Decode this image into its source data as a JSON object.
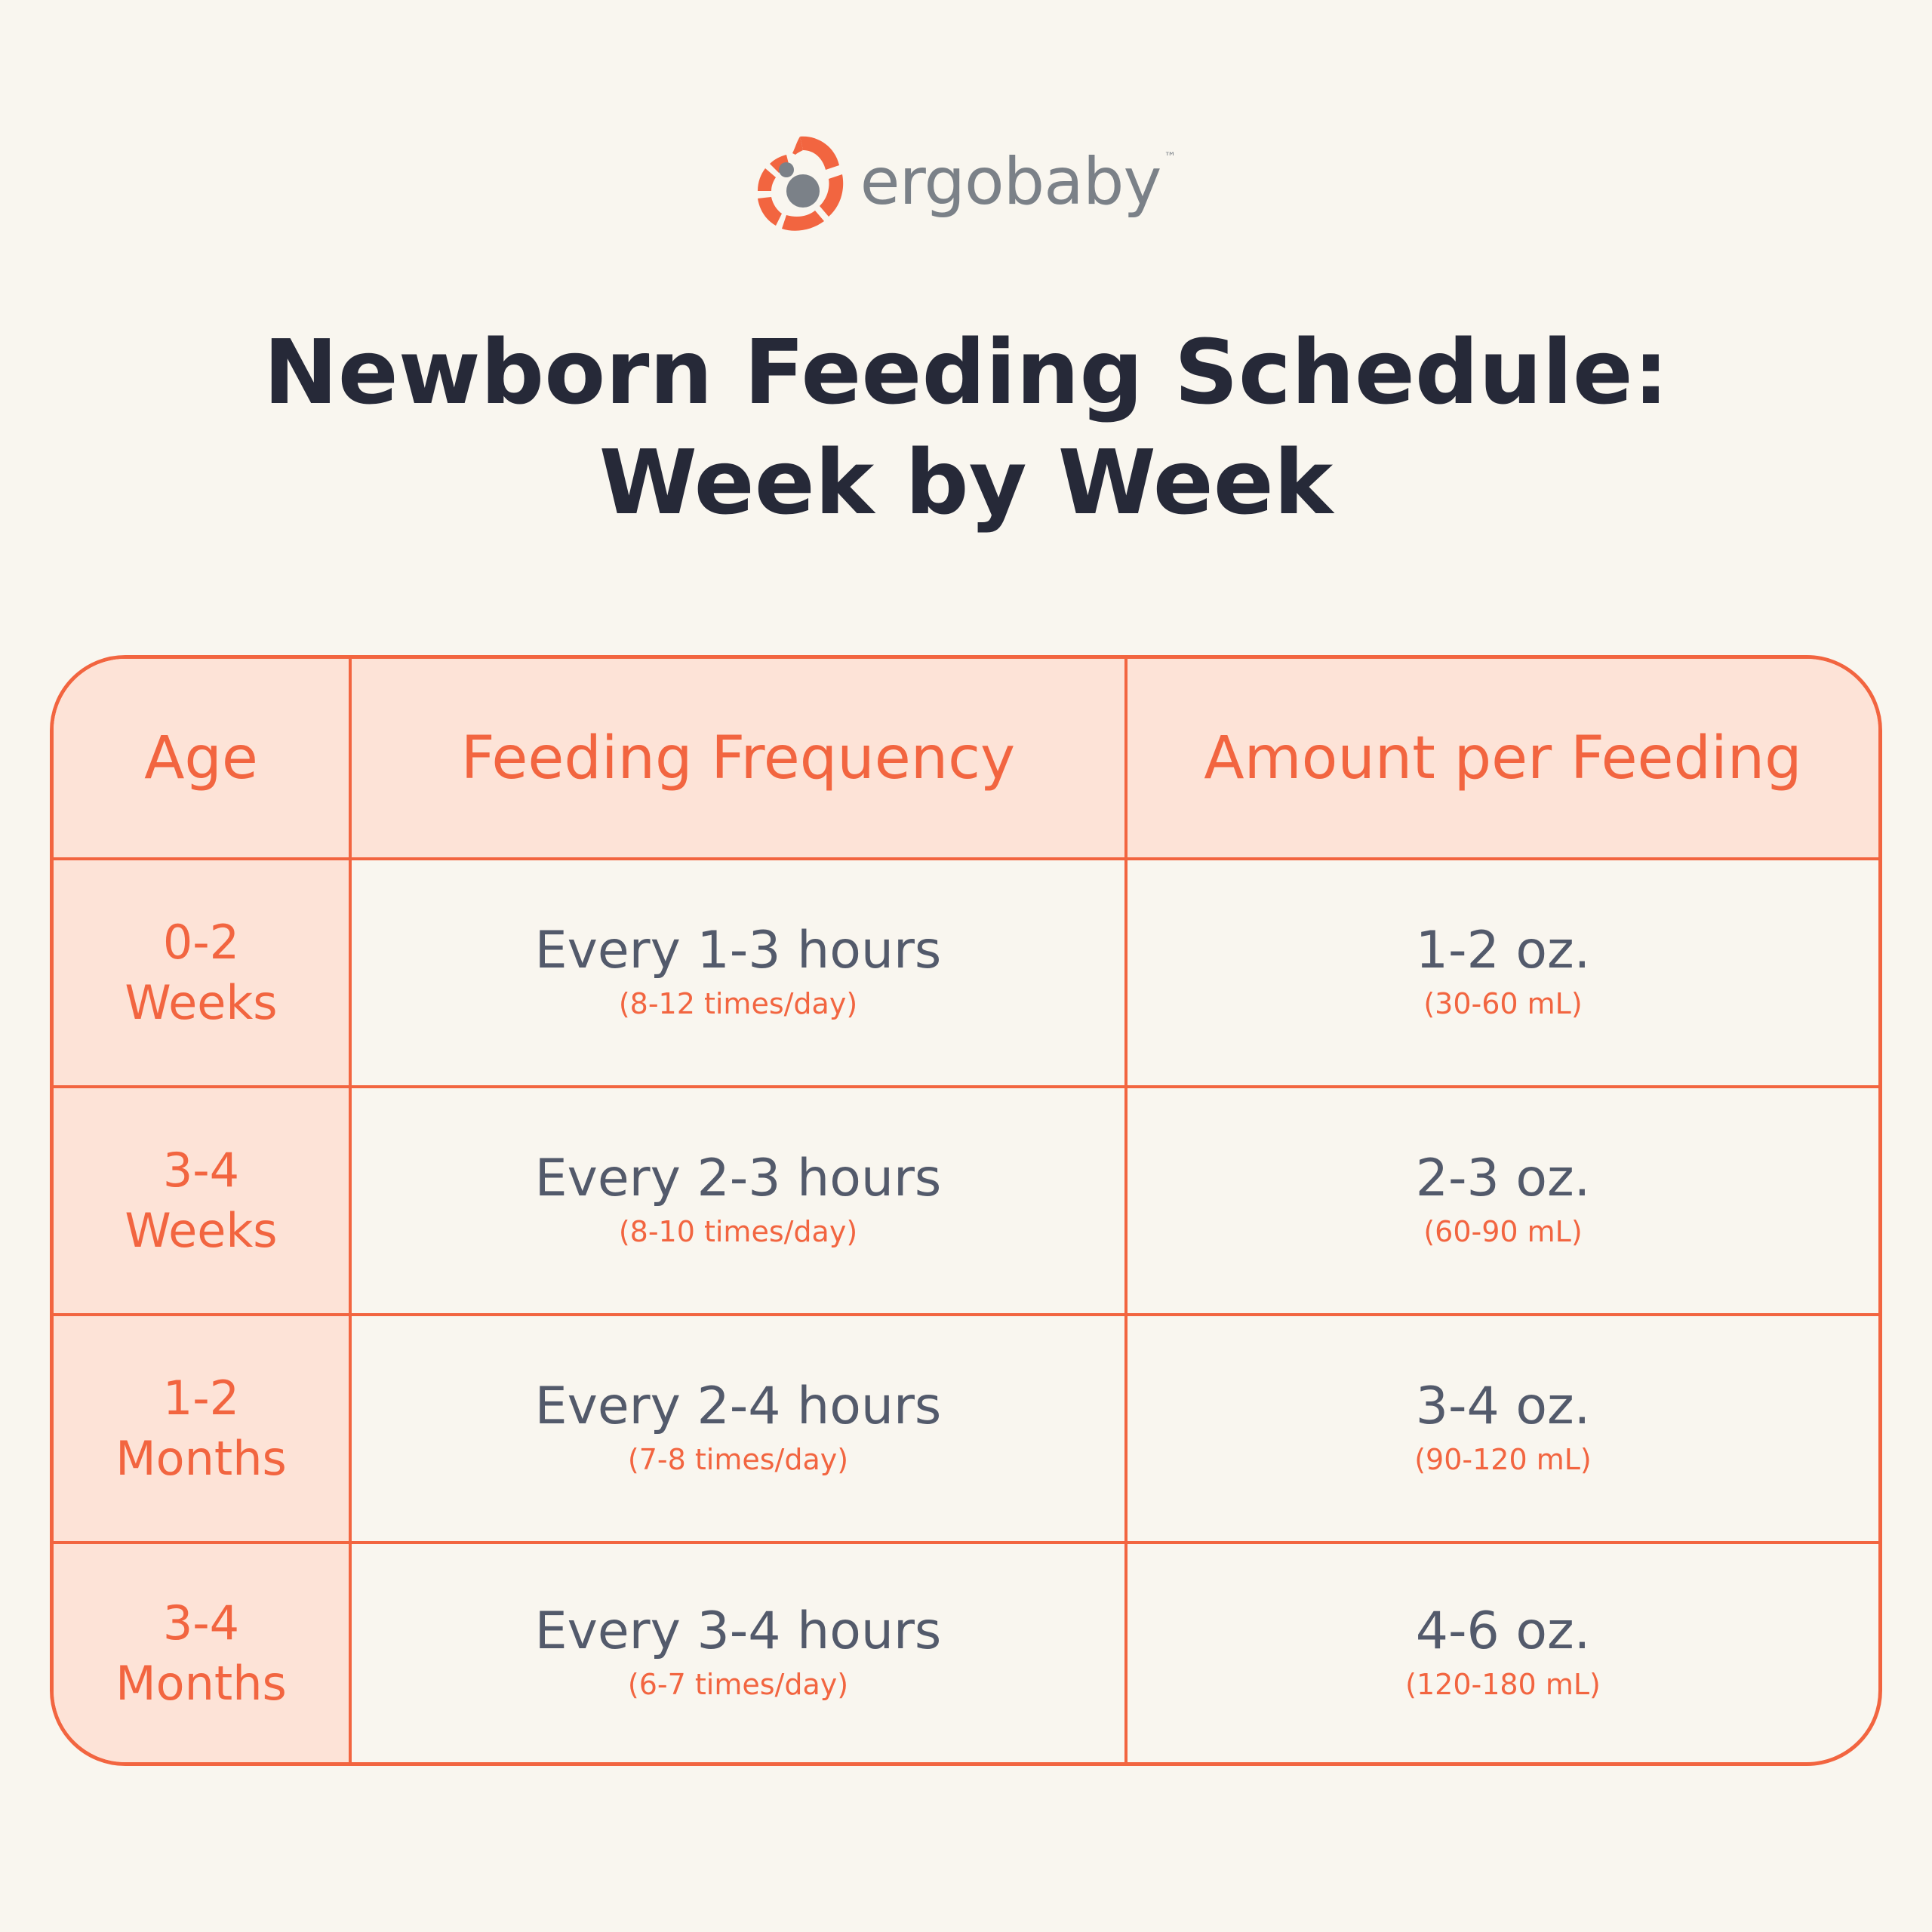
{
  "brand": {
    "name": "ergobaby",
    "trademark": "™",
    "colors": {
      "accent": "#f26540",
      "gray": "#7b8188"
    }
  },
  "title": {
    "line1": "Newborn Feeding Schedule:",
    "line2": "Week by Week"
  },
  "table": {
    "headers": [
      "Age",
      "Feeding Frequency",
      "Amount per Feeding"
    ],
    "rows": [
      {
        "age": [
          "0-2",
          "Weeks"
        ],
        "frequency": "Every 1-3 hours",
        "frequency_note": "(8-12 times/day)",
        "amount": "1-2 oz.",
        "amount_note": "(30-60 mL)"
      },
      {
        "age": [
          "3-4",
          "Weeks"
        ],
        "frequency": "Every 2-3 hours",
        "frequency_note": "(8-10 times/day)",
        "amount": "2-3 oz.",
        "amount_note": "(60-90 mL)"
      },
      {
        "age": [
          "1-2",
          "Months"
        ],
        "frequency": "Every 2-4 hours",
        "frequency_note": "(7-8 times/day)",
        "amount": "3-4 oz.",
        "amount_note": "(90-120 mL)"
      },
      {
        "age": [
          "3-4",
          "Months"
        ],
        "frequency": "Every 3-4 hours",
        "frequency_note": "(6-7 times/day)",
        "amount": "4-6 oz.",
        "amount_note": "(120-180 mL)"
      }
    ]
  }
}
